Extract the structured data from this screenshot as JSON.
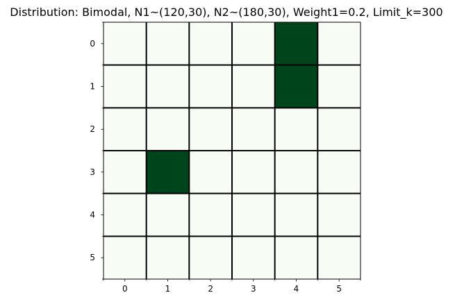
{
  "chart_data": {
    "type": "heatmap",
    "title": "Distribution: Bimodal, N1~(120,30), N2~(180,30), Weight1=0.2, Limit_k=300",
    "xlabel": "",
    "ylabel": "",
    "x_ticks": [
      "0",
      "1",
      "2",
      "3",
      "4",
      "5"
    ],
    "y_ticks": [
      "0",
      "1",
      "2",
      "3",
      "4",
      "5"
    ],
    "values": [
      [
        0,
        0,
        0,
        0,
        1,
        0
      ],
      [
        0,
        0,
        0,
        0,
        1,
        0
      ],
      [
        0,
        0,
        0,
        0,
        0,
        0
      ],
      [
        0,
        1,
        0,
        0,
        0,
        0
      ],
      [
        0,
        0,
        0,
        0,
        0,
        0
      ],
      [
        0,
        0,
        0,
        0,
        0,
        0
      ]
    ],
    "colormap": {
      "low": "#f7fcf5",
      "high": "#00441b"
    },
    "cell_border_color": "#000000",
    "grid": true
  }
}
